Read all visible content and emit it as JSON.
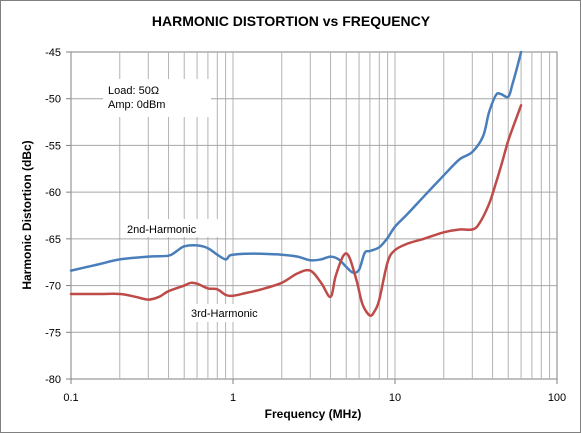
{
  "chart_data": {
    "type": "line",
    "title": "HARMONIC DISTORTION  vs  FREQUENCY",
    "xlabel": "Frequency (MHz)",
    "ylabel": "Harmonic Distortion (dBc)",
    "x_scale": "log",
    "xlim": [
      0.1,
      100
    ],
    "ylim": [
      -80,
      -45
    ],
    "x_ticks": [
      "0.1",
      "1",
      "10",
      "100"
    ],
    "x_tick_values": [
      0.1,
      1,
      10,
      100
    ],
    "y_ticks": [
      "-45",
      "-50",
      "-55",
      "-60",
      "-65",
      "-70",
      "-75",
      "-80"
    ],
    "y_tick_values": [
      -45,
      -50,
      -55,
      -60,
      -65,
      -70,
      -75,
      -80
    ],
    "grid": true,
    "conditions": [
      "Load: 50Ω",
      "Amp: 0dBm"
    ],
    "series": [
      {
        "name": "2nd-Harmonic",
        "color": "#4a7ebb",
        "points": [
          [
            0.1,
            -68.4
          ],
          [
            0.15,
            -67.7
          ],
          [
            0.2,
            -67.2
          ],
          [
            0.3,
            -66.9
          ],
          [
            0.4,
            -66.8
          ],
          [
            0.45,
            -66.3
          ],
          [
            0.5,
            -65.8
          ],
          [
            0.6,
            -65.7
          ],
          [
            0.7,
            -66.0
          ],
          [
            0.8,
            -66.7
          ],
          [
            0.9,
            -67.2
          ],
          [
            0.95,
            -66.8
          ],
          [
            1.0,
            -66.7
          ],
          [
            1.2,
            -66.6
          ],
          [
            1.5,
            -66.6
          ],
          [
            2.0,
            -66.7
          ],
          [
            2.5,
            -66.9
          ],
          [
            3.0,
            -67.3
          ],
          [
            3.5,
            -67.2
          ],
          [
            4.0,
            -66.9
          ],
          [
            4.5,
            -67.2
          ],
          [
            5.0,
            -68.0
          ],
          [
            5.5,
            -68.6
          ],
          [
            6.0,
            -68.3
          ],
          [
            6.5,
            -66.5
          ],
          [
            7.0,
            -66.3
          ],
          [
            8.0,
            -65.9
          ],
          [
            9.0,
            -64.9
          ],
          [
            10.0,
            -63.7
          ],
          [
            12.0,
            -62.3
          ],
          [
            15.0,
            -60.5
          ],
          [
            20.0,
            -58.2
          ],
          [
            25.0,
            -56.5
          ],
          [
            30.0,
            -55.7
          ],
          [
            35.0,
            -54.0
          ],
          [
            38.0,
            -51.5
          ],
          [
            42.0,
            -49.6
          ],
          [
            45.0,
            -49.5
          ],
          [
            50.0,
            -49.8
          ],
          [
            53.0,
            -48.5
          ],
          [
            57.0,
            -46.5
          ],
          [
            60.0,
            -45.0
          ]
        ]
      },
      {
        "name": "3rd-Harmonic",
        "color": "#be4b48",
        "points": [
          [
            0.1,
            -70.9
          ],
          [
            0.15,
            -70.9
          ],
          [
            0.2,
            -70.9
          ],
          [
            0.25,
            -71.2
          ],
          [
            0.3,
            -71.5
          ],
          [
            0.35,
            -71.2
          ],
          [
            0.4,
            -70.6
          ],
          [
            0.5,
            -70.0
          ],
          [
            0.55,
            -69.7
          ],
          [
            0.6,
            -69.8
          ],
          [
            0.7,
            -70.3
          ],
          [
            0.8,
            -70.4
          ],
          [
            0.9,
            -71.0
          ],
          [
            1.0,
            -71.1
          ],
          [
            1.2,
            -70.8
          ],
          [
            1.5,
            -70.4
          ],
          [
            2.0,
            -69.7
          ],
          [
            2.5,
            -68.7
          ],
          [
            3.0,
            -68.4
          ],
          [
            3.5,
            -69.7
          ],
          [
            4.0,
            -71.2
          ],
          [
            4.3,
            -69.0
          ],
          [
            4.8,
            -66.8
          ],
          [
            5.2,
            -66.9
          ],
          [
            5.8,
            -69.5
          ],
          [
            6.3,
            -72.0
          ],
          [
            7.0,
            -73.2
          ],
          [
            7.5,
            -72.7
          ],
          [
            8.0,
            -71.5
          ],
          [
            9.0,
            -67.5
          ],
          [
            10.0,
            -66.2
          ],
          [
            12.0,
            -65.5
          ],
          [
            15.0,
            -65.0
          ],
          [
            20.0,
            -64.3
          ],
          [
            25.0,
            -64.0
          ],
          [
            30.0,
            -64.0
          ],
          [
            33.0,
            -63.4
          ],
          [
            38.0,
            -61.3
          ],
          [
            42.0,
            -59.0
          ],
          [
            45.0,
            -57.3
          ],
          [
            50.0,
            -54.5
          ],
          [
            55.0,
            -52.5
          ],
          [
            60.0,
            -50.7
          ]
        ]
      }
    ]
  }
}
